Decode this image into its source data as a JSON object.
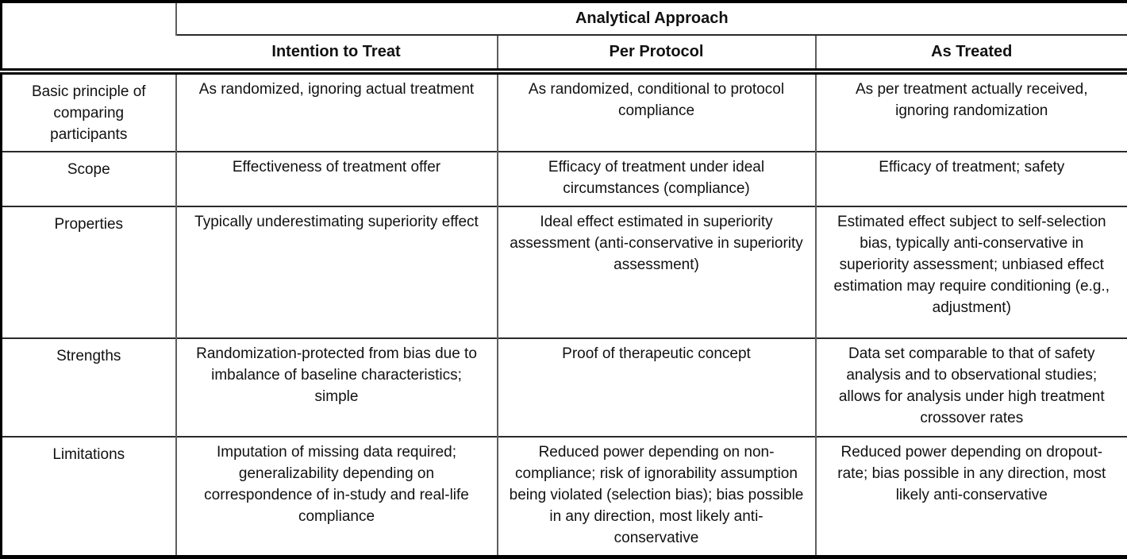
{
  "table": {
    "corner_label": "",
    "group_header": "Analytical Approach",
    "columns": [
      "Intention to Treat",
      "Per Protocol",
      "As Treated"
    ],
    "rows": [
      {
        "label": "Basic principle of comparing participants",
        "cells": [
          "As randomized, ignoring actual treatment",
          "As randomized, conditional to protocol compliance",
          "As per treatment actually received, ignoring randomization"
        ]
      },
      {
        "label": "Scope",
        "cells": [
          "Effectiveness of treatment offer",
          "Efficacy of treatment under ideal circumstances (compliance)",
          "Efficacy of treatment; safety"
        ]
      },
      {
        "label": "Properties",
        "cells": [
          "Typically underestimating superiority effect",
          "Ideal effect estimated in superiority assessment (anti-conservative in superiority assessment)",
          "Estimated effect subject to self-selection bias, typically anti-conservative in superiority assessment; unbiased effect estimation may require conditioning (e.g., adjustment)"
        ]
      },
      {
        "label": "Strengths",
        "cells": [
          "Randomization-protected from bias due to imbalance of baseline characteristics; simple",
          "Proof of therapeutic concept",
          "Data set comparable to that of safety analysis and to observational studies; allows for analysis under high treatment crossover rates"
        ]
      },
      {
        "label": "Limitations",
        "cells": [
          "Imputation of missing data required; generalizability depending on correspondence of in-study and real-life compliance",
          "Reduced power depending on non-compliance; risk of ignorability assumption being violated (selection bias); bias possible in any direction, most likely anti-conservative",
          "Reduced power depending on dropout-rate; bias possible in any direction, most likely anti-conservative"
        ]
      }
    ]
  },
  "style": {
    "outer_border_color": "#000000",
    "inner_grid_color": "#5f5f5f",
    "background": "#ffffff",
    "text_color": "#111111"
  }
}
